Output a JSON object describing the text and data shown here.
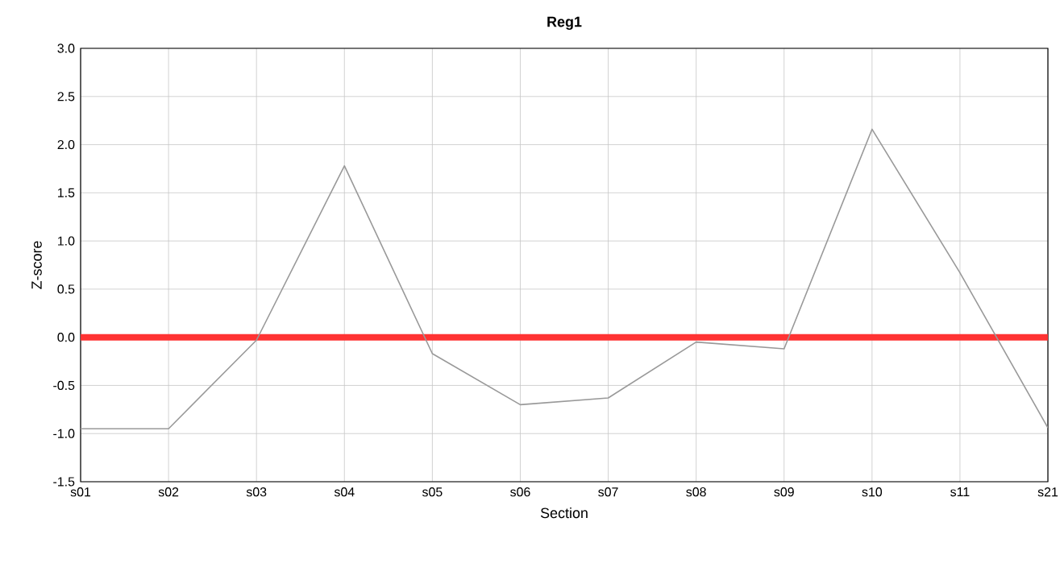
{
  "chart_data": {
    "type": "line",
    "title": "Reg1",
    "xlabel": "Section",
    "ylabel": "Z-score",
    "categories": [
      "s01",
      "s02",
      "s03",
      "s04",
      "s05",
      "s06",
      "s07",
      "s08",
      "s09",
      "s10",
      "s11",
      "s21"
    ],
    "series": [
      {
        "color": "#999999",
        "values": [
          -0.95,
          -0.95,
          -0.03,
          1.78,
          -0.17,
          -0.7,
          -0.63,
          -0.05,
          -0.12,
          2.16,
          0.67,
          -0.94
        ]
      }
    ],
    "ylim": [
      -1.5,
      3.0
    ],
    "yticks": [
      {
        "value": -1.5,
        "label": "-1.5"
      },
      {
        "value": -1.0,
        "label": "-1.0"
      },
      {
        "value": -0.5,
        "label": "-0.5"
      },
      {
        "value": 0.0,
        "label": "0.0"
      },
      {
        "value": 0.5,
        "label": "0.5"
      },
      {
        "value": 1.0,
        "label": "1.0"
      },
      {
        "value": 1.5,
        "label": "1.5"
      },
      {
        "value": 2.0,
        "label": "2.0"
      },
      {
        "value": 2.5,
        "label": "2.5"
      },
      {
        "value": 3.0,
        "label": "3.0"
      }
    ],
    "ref_lines": [
      {
        "axis": "y",
        "value": 0,
        "color": "#ff3333"
      }
    ],
    "grid": true,
    "marker": "none",
    "line_style": "solid"
  }
}
